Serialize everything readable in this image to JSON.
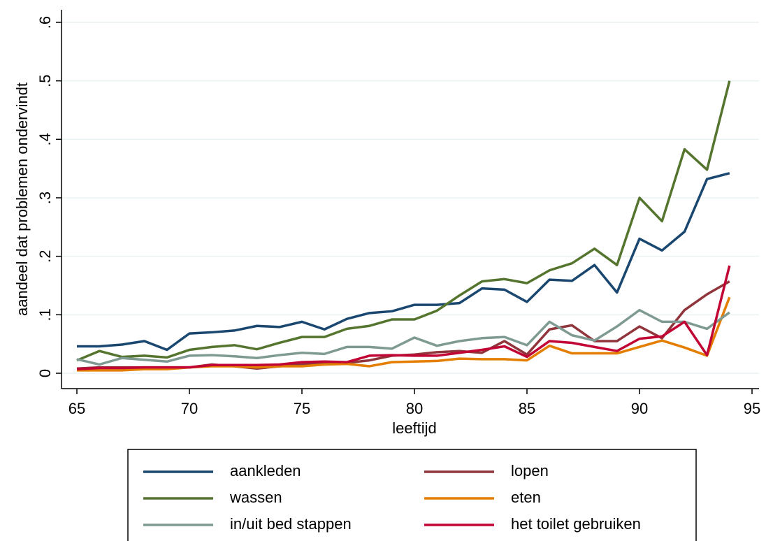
{
  "chart_data": {
    "type": "line",
    "xlabel": "leeftijd",
    "ylabel": "aandeel dat problemen ondervindt",
    "x": [
      65,
      66,
      67,
      68,
      69,
      70,
      71,
      72,
      73,
      74,
      75,
      76,
      77,
      78,
      79,
      80,
      81,
      82,
      83,
      84,
      85,
      86,
      87,
      88,
      89,
      90,
      91,
      92,
      93,
      94
    ],
    "xlim": [
      65,
      95
    ],
    "xticks": [
      65,
      70,
      75,
      80,
      85,
      90,
      95
    ],
    "ylim": [
      0,
      0.6
    ],
    "yticks": [
      0,
      {
        "value": 0.1,
        "label": ".1"
      },
      {
        "value": 0.2,
        "label": ".2"
      },
      {
        "value": 0.3,
        "label": ".3"
      },
      {
        "value": 0.4,
        "label": ".4"
      },
      {
        "value": 0.5,
        "label": ".5"
      },
      {
        "value": 0.6,
        "label": ".6"
      }
    ],
    "grid": true,
    "legend": "bottom",
    "series": [
      {
        "name": "aankleden",
        "color": "#1a476f",
        "values": [
          0.046,
          0.046,
          0.049,
          0.055,
          0.04,
          0.068,
          0.07,
          0.073,
          0.081,
          0.079,
          0.088,
          0.075,
          0.093,
          0.103,
          0.106,
          0.117,
          0.117,
          0.12,
          0.145,
          0.143,
          0.122,
          0.16,
          0.158,
          0.185,
          0.138,
          0.23,
          0.21,
          0.242,
          0.332,
          0.342
        ]
      },
      {
        "name": "lopen",
        "color": "#90353b",
        "values": [
          0.008,
          0.01,
          0.01,
          0.01,
          0.01,
          0.01,
          0.015,
          0.012,
          0.008,
          0.012,
          0.015,
          0.018,
          0.018,
          0.022,
          0.03,
          0.032,
          0.036,
          0.038,
          0.035,
          0.055,
          0.032,
          0.075,
          0.082,
          0.055,
          0.055,
          0.08,
          0.06,
          0.108,
          0.135,
          0.157
        ]
      },
      {
        "name": "wassen",
        "color": "#55752f",
        "values": [
          0.022,
          0.038,
          0.028,
          0.03,
          0.027,
          0.04,
          0.045,
          0.048,
          0.041,
          0.052,
          0.062,
          0.062,
          0.076,
          0.081,
          0.092,
          0.092,
          0.107,
          0.133,
          0.157,
          0.161,
          0.154,
          0.176,
          0.188,
          0.213,
          0.185,
          0.3,
          0.26,
          0.383,
          0.348,
          0.5
        ]
      },
      {
        "name": "eten",
        "color": "#e37e00",
        "values": [
          0.005,
          0.005,
          0.005,
          0.007,
          0.007,
          0.01,
          0.012,
          0.012,
          0.01,
          0.012,
          0.012,
          0.015,
          0.016,
          0.012,
          0.019,
          0.02,
          0.021,
          0.025,
          0.024,
          0.024,
          0.022,
          0.047,
          0.034,
          0.034,
          0.034,
          0.045,
          0.056,
          0.044,
          0.03,
          0.13
        ]
      },
      {
        "name": "in/uit bed stappen",
        "color": "#7f9a92",
        "values": [
          0.024,
          0.015,
          0.026,
          0.023,
          0.02,
          0.03,
          0.031,
          0.029,
          0.026,
          0.031,
          0.035,
          0.033,
          0.045,
          0.045,
          0.042,
          0.061,
          0.047,
          0.055,
          0.06,
          0.062,
          0.048,
          0.088,
          0.065,
          0.056,
          0.08,
          0.108,
          0.088,
          0.088,
          0.076,
          0.104
        ]
      },
      {
        "name": "het toilet gebruiken",
        "color": "#c10534",
        "values": [
          0.007,
          0.009,
          0.009,
          0.01,
          0.01,
          0.01,
          0.014,
          0.014,
          0.014,
          0.015,
          0.019,
          0.02,
          0.019,
          0.03,
          0.031,
          0.03,
          0.03,
          0.035,
          0.04,
          0.046,
          0.028,
          0.055,
          0.052,
          0.045,
          0.038,
          0.059,
          0.063,
          0.088,
          0.031,
          0.184
        ]
      }
    ]
  }
}
